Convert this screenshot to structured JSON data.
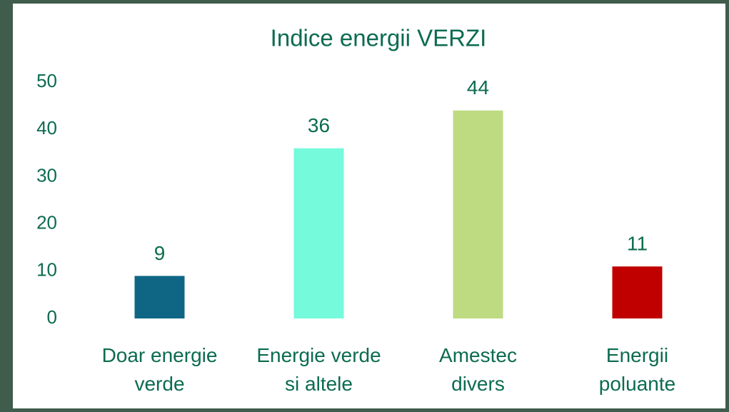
{
  "chart_data": {
    "type": "bar",
    "title": "Indice energii VERZI",
    "categories": [
      "Doar energie\nverde",
      "Energie verde\nsi altele",
      "Amestec\ndivers",
      "Energii\npoluante"
    ],
    "values": [
      9,
      36,
      44,
      11
    ],
    "colors": [
      "#0f6684",
      "#75fadb",
      "#bedb82",
      "#c00000"
    ],
    "ylim": [
      0,
      50
    ],
    "yticks": [
      0,
      10,
      20,
      30,
      40,
      50
    ],
    "grid": false
  }
}
